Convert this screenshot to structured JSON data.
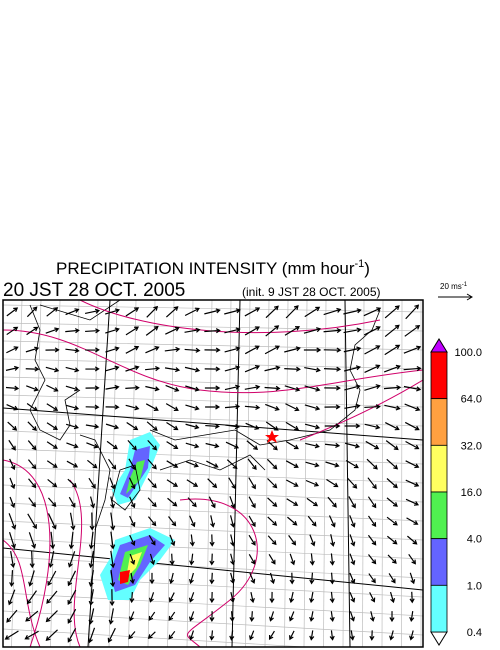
{
  "header": {
    "title": "PRECIPITATION INTENSITY (mm hour",
    "title_sup": "-1",
    "title_end": ")",
    "valid_time": "20 JST 28 OCT. 2005",
    "init_time": "(init. 9 JST 28 OCT. 2005)"
  },
  "reference_vector": {
    "label": "20 ms",
    "label_sup": "-1"
  },
  "colorbar": {
    "labels": [
      "100.0",
      "64.0",
      "32.0",
      "16.0",
      "4.0",
      "1.0",
      "0.4"
    ],
    "colors": [
      "#ff0000",
      "#ffa040",
      "#ffff60",
      "#50f050",
      "#6464ff",
      "#64ffff"
    ],
    "over_color": "#c000ff",
    "under_color": "#ffffff"
  }
}
